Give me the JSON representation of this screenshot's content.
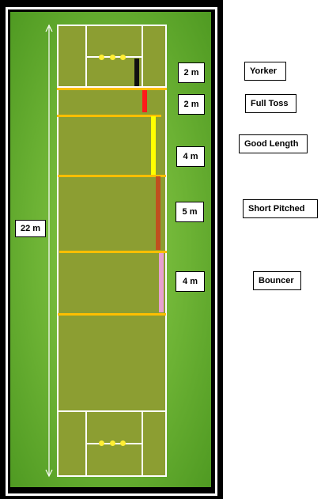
{
  "pitch_length_label": "22 m",
  "segments": [
    {
      "distance": "2 m",
      "length_name": "Yorker",
      "color": "#111111"
    },
    {
      "distance": "2 m",
      "length_name": "Full Toss",
      "color": "#ff1a1a"
    },
    {
      "distance": "4 m",
      "length_name": "Good Length",
      "color": "#ffff00"
    },
    {
      "distance": "5 m",
      "length_name": "Short Pitched",
      "color": "#c0501e"
    },
    {
      "distance": "4 m",
      "length_name": "Bouncer",
      "color": "#e8a0d0"
    }
  ],
  "colors": {
    "field": "#6cb234",
    "pitch": "#8c9e32",
    "zone_line": "#ffbf00",
    "crease_line": "#ffffff",
    "stumps": "#ffee33"
  }
}
